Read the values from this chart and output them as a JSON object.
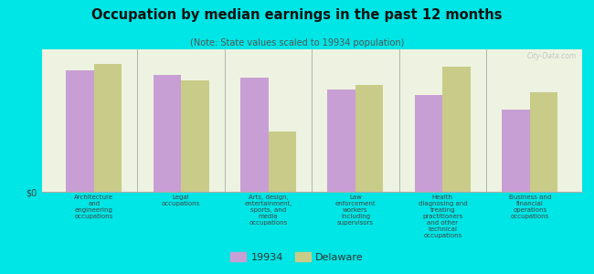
{
  "title": "Occupation by median earnings in the past 12 months",
  "subtitle": "(Note: State values scaled to 19934 population)",
  "categories": [
    "Architecture\nand\nengineering\noccupations",
    "Legal\noccupations",
    "Arts, design,\nentertainment,\nsports, and\nmedia\noccupations",
    "Law\nenforcement\nworkers\nincluding\nsupervisors",
    "Health\ndiagnosing and\ntreating\npractitioners\nand other\ntechnical\noccupations",
    "Business and\nfinancial\noperations\noccupations"
  ],
  "series_19934": [
    85,
    82,
    80,
    72,
    68,
    58
  ],
  "series_delaware": [
    90,
    78,
    42,
    75,
    88,
    70
  ],
  "color_19934": "#c89fd4",
  "color_delaware": "#c8cc88",
  "background_color": "#00e5e5",
  "chart_bg": "#edf3e0",
  "ylabel": "$0",
  "legend_19934": "19934",
  "legend_delaware": "Delaware",
  "ylim": [
    0,
    100
  ],
  "watermark": "City-Data.com"
}
